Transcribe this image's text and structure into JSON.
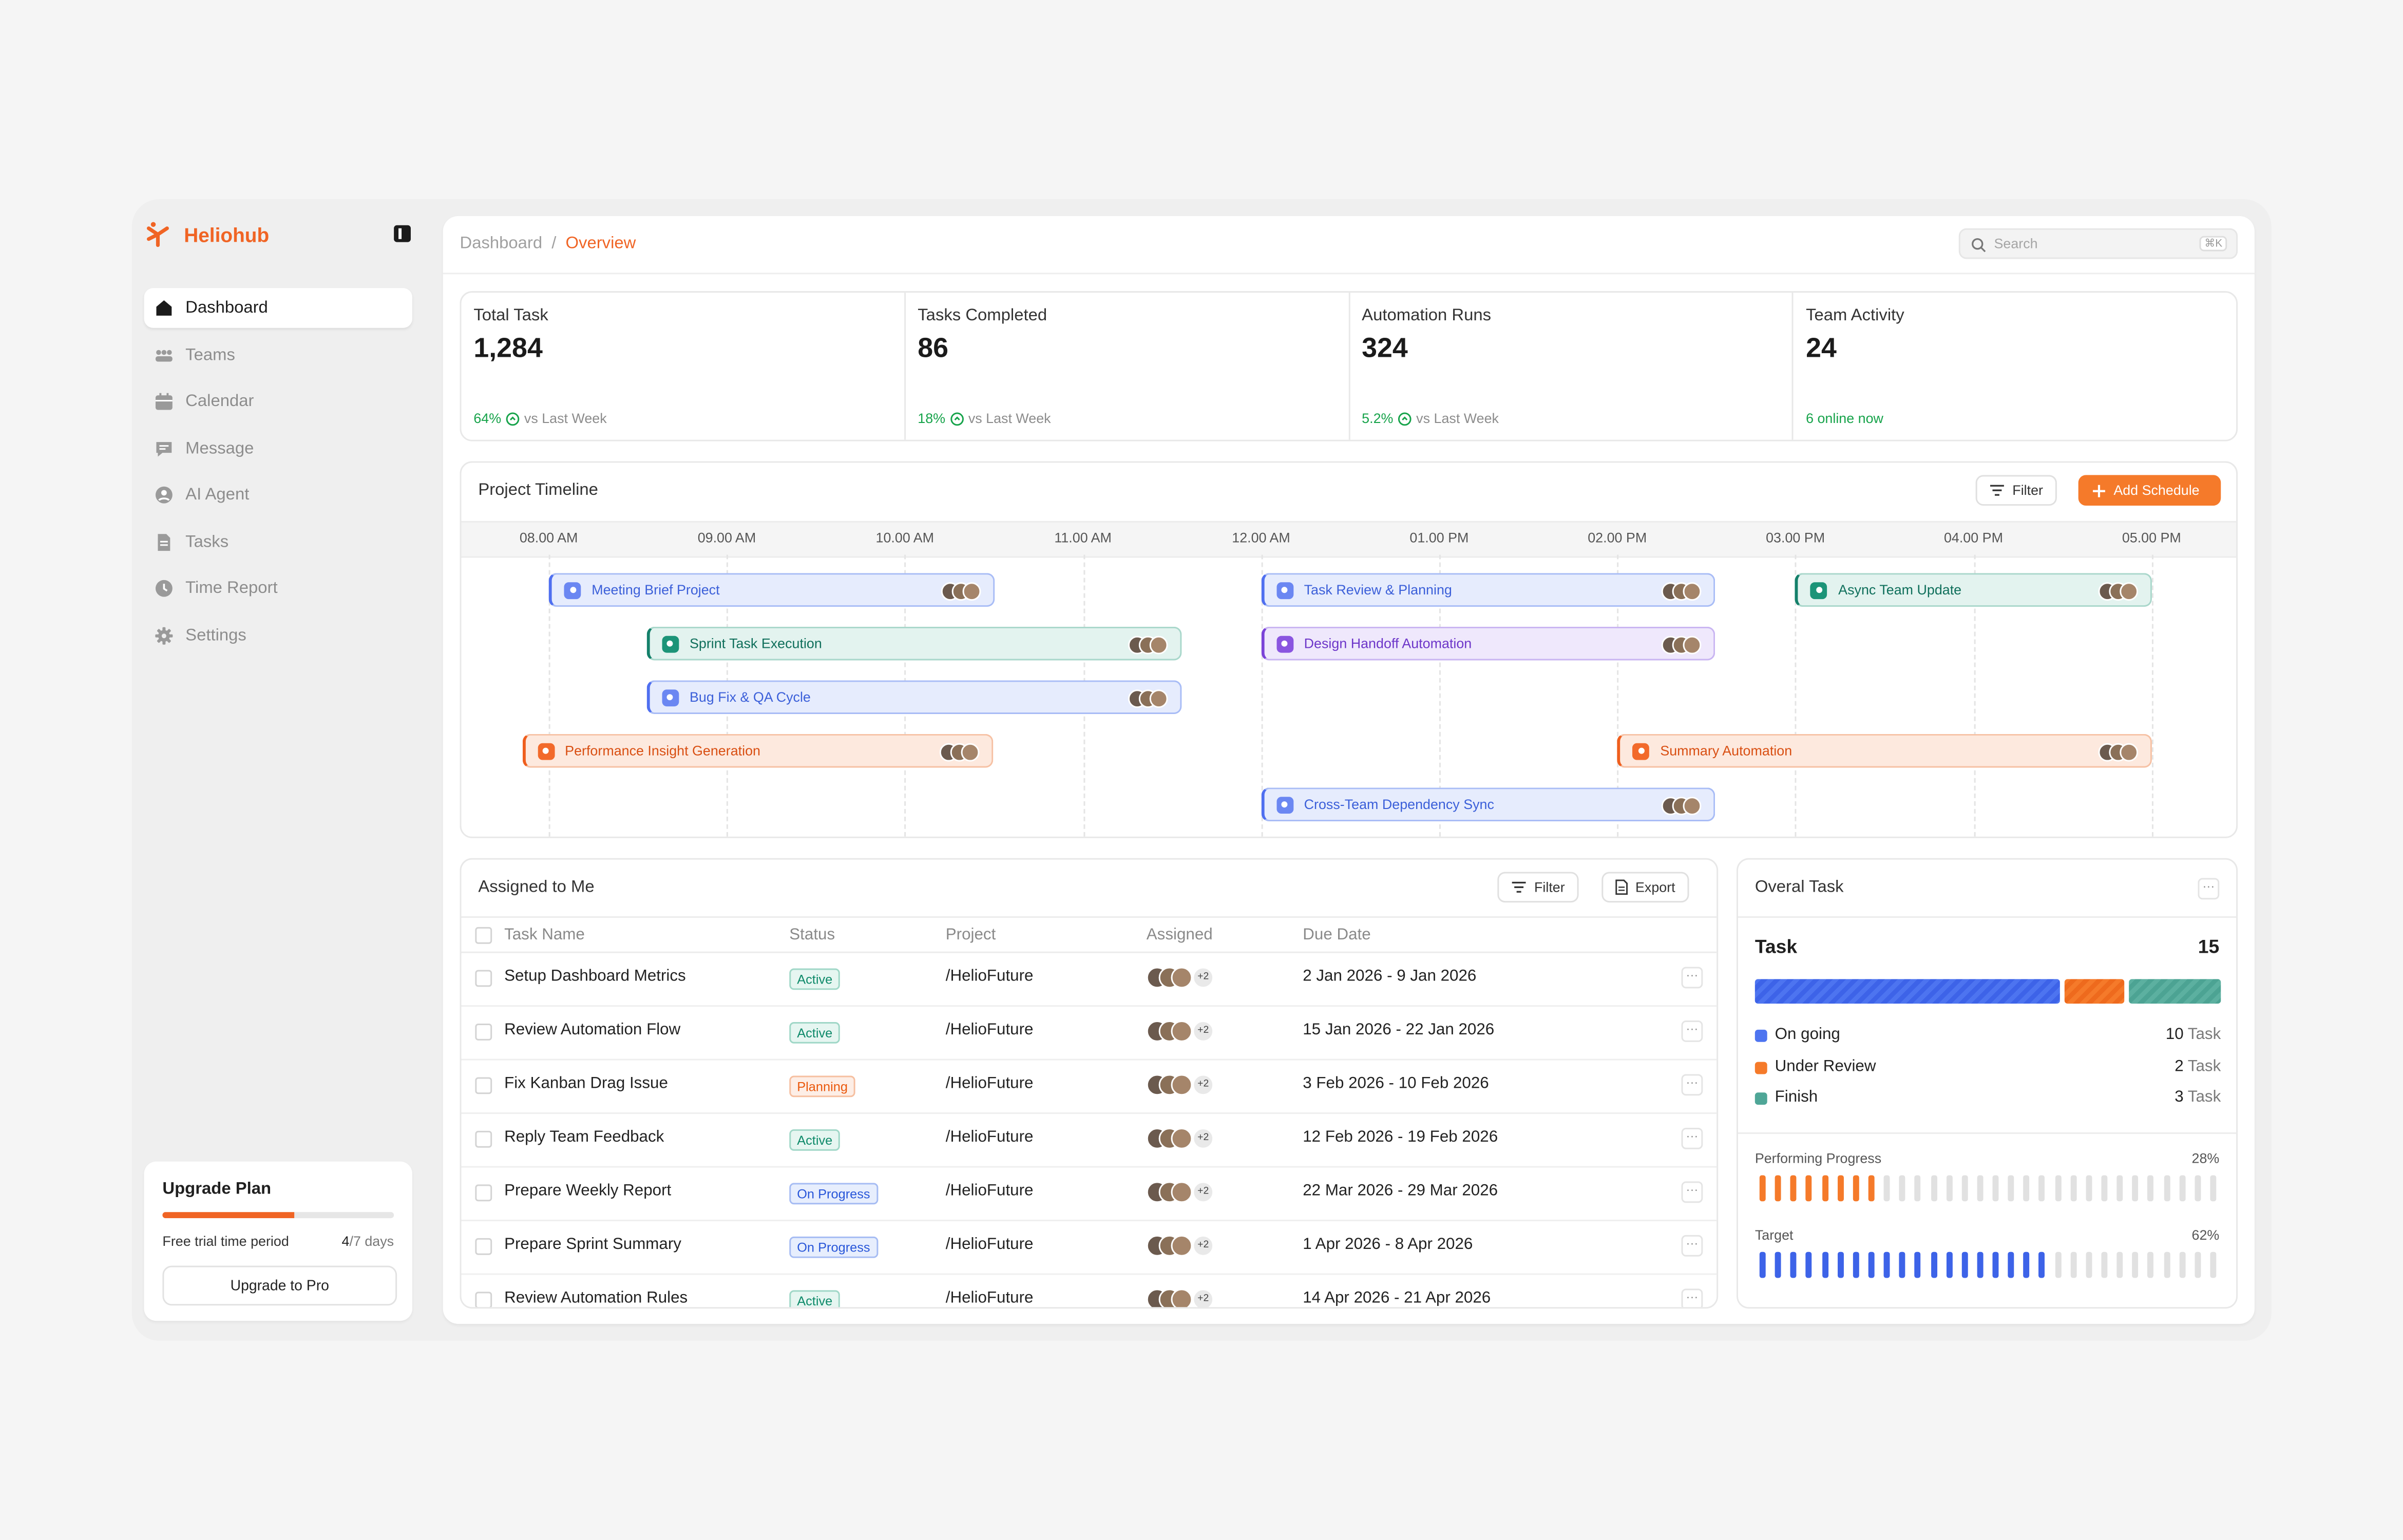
{
  "brand": {
    "name": "Heliohub",
    "color": "#f06424"
  },
  "nav": [
    {
      "label": "Dashboard",
      "icon": "home-icon",
      "active": true
    },
    {
      "label": "Teams",
      "icon": "teams-icon",
      "active": false
    },
    {
      "label": "Calendar",
      "icon": "calendar-icon",
      "active": false
    },
    {
      "label": "Message",
      "icon": "message-icon",
      "active": false
    },
    {
      "label": "AI Agent",
      "icon": "ai-agent-icon",
      "active": false
    },
    {
      "label": "Tasks",
      "icon": "tasks-icon",
      "active": false
    },
    {
      "label": "Time Report",
      "icon": "clock-icon",
      "active": false
    },
    {
      "label": "Settings",
      "icon": "gear-icon",
      "active": false
    }
  ],
  "upgrade": {
    "title": "Upgrade Plan",
    "label": "Free trial time period",
    "days_used": "4",
    "days_total": "/7 days",
    "progress": 0.57,
    "button": "Upgrade to Pro"
  },
  "breadcrumb": {
    "root": "Dashboard",
    "sep": "/",
    "current": "Overview"
  },
  "search": {
    "placeholder": "Search",
    "shortcut": "⌘K"
  },
  "stats": [
    {
      "label": "Total Task",
      "value": "1,284",
      "pct": "64%",
      "suffix": "vs Last Week"
    },
    {
      "label": "Tasks Completed",
      "value": "86",
      "pct": "18%",
      "suffix": "vs Last Week"
    },
    {
      "label": "Automation Runs",
      "value": "324",
      "pct": "5.2%",
      "suffix": "vs Last Week"
    },
    {
      "label": "Team Activity",
      "value": "24",
      "online": "6 online now"
    }
  ],
  "timeline": {
    "title": "Project Timeline",
    "filter_label": "Filter",
    "add_label": "Add Schedule",
    "hours": [
      "08.00 AM",
      "09.00 AM",
      "10.00 AM",
      "11.00 AM",
      "12.00 AM",
      "01.00 PM",
      "02.00 PM",
      "03.00 PM",
      "04.00 PM",
      "05.00 PM"
    ],
    "events": [
      {
        "name": "Meeting Brief Project",
        "color": "blue",
        "start": 0.0,
        "end": 2.5,
        "row": 0
      },
      {
        "name": "Sprint Task Execution",
        "color": "teal",
        "start": 0.55,
        "end": 3.55,
        "row": 1
      },
      {
        "name": "Bug Fix & QA Cycle",
        "color": "blue",
        "start": 0.55,
        "end": 3.55,
        "row": 2
      },
      {
        "name": "Performance Insight Generation",
        "color": "orange",
        "start": -0.15,
        "end": 2.5,
        "row": 3
      },
      {
        "name": "Task Review & Planning",
        "color": "blue",
        "start": 4.0,
        "end": 6.55,
        "row": 0
      },
      {
        "name": "Design Handoff Automation",
        "color": "purple",
        "start": 4.0,
        "end": 6.55,
        "row": 1
      },
      {
        "name": "Cross-Team Dependency Sync",
        "color": "blue",
        "start": 4.0,
        "end": 6.55,
        "row": 4
      },
      {
        "name": "Async Team Update",
        "color": "teal",
        "start": 7.0,
        "end": 9.0,
        "row": 0
      },
      {
        "name": "Summary Automation",
        "color": "orange",
        "start": 6.0,
        "end": 9.0,
        "row": 3
      }
    ]
  },
  "assigned": {
    "title": "Assigned to Me",
    "filter_label": "Filter",
    "export_label": "Export",
    "columns": [
      "Task Name",
      "Status",
      "Project",
      "Assigned",
      "Due Date"
    ],
    "rows": [
      {
        "task": "Setup Dashboard Metrics",
        "status": "Active",
        "project": "/HelioFuture",
        "extra": "+2",
        "due": "2 Jan 2026 - 9 Jan 2026"
      },
      {
        "task": "Review Automation Flow",
        "status": "Active",
        "project": "/HelioFuture",
        "extra": "+2",
        "due": "15 Jan 2026 - 22 Jan 2026"
      },
      {
        "task": "Fix Kanban Drag Issue",
        "status": "Planning",
        "project": "/HelioFuture",
        "extra": "+2",
        "due": "3 Feb 2026 - 10 Feb 2026"
      },
      {
        "task": "Reply Team Feedback",
        "status": "Active",
        "project": "/HelioFuture",
        "extra": "+2",
        "due": "12 Feb 2026 - 19 Feb 2026"
      },
      {
        "task": "Prepare Weekly Report",
        "status": "On Progress",
        "project": "/HelioFuture",
        "extra": "+2",
        "due": "22 Mar 2026 - 29 Mar 2026"
      },
      {
        "task": "Prepare Sprint Summary",
        "status": "On Progress",
        "project": "/HelioFuture",
        "extra": "+2",
        "due": "1 Apr 2026 - 8 Apr 2026"
      },
      {
        "task": "Review Automation Rules",
        "status": "Active",
        "project": "/HelioFuture",
        "extra": "+2",
        "due": "14 Apr 2026 - 21 Apr 2026"
      }
    ]
  },
  "overall": {
    "title": "Overal Task",
    "task_label": "Task",
    "total": "15",
    "unit": "Task",
    "items": [
      {
        "name": "On going",
        "count": 10,
        "color": "#4d74f0"
      },
      {
        "name": "Under Review",
        "count": 2,
        "color": "#f57a2a"
      },
      {
        "name": "Finish",
        "count": 3,
        "color": "#4fa697"
      }
    ],
    "progress": [
      {
        "label": "Performing Progress",
        "pct": "28%",
        "value": 0.28,
        "color": "#f57a2a"
      },
      {
        "label": "Target",
        "pct": "62%",
        "value": 0.62,
        "color": "#3d63e8"
      }
    ]
  }
}
